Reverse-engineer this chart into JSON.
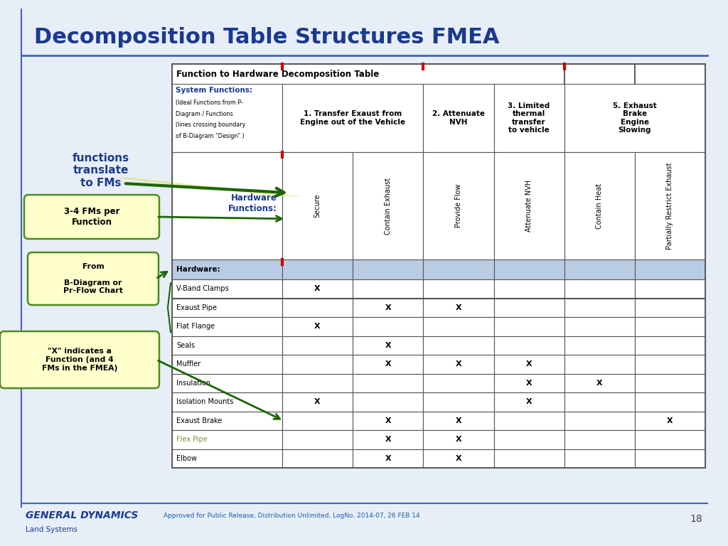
{
  "title": "Decomposition Table Structures FMEA",
  "title_color": "#1a3a8c",
  "bg_color": "#ffffff",
  "slide_bg": "#e8eef8",
  "table_title": "Function to Hardware Decomposition Table",
  "system_functions_label": "System Functions:",
  "system_functions_sub1": "(Ideal Functions from P-",
  "system_functions_sub2": "Diagram / Functions",
  "system_functions_sub3": "(lines crossing boundary",
  "system_functions_sub4": "of B-Diagram \"Design\".)",
  "col_headers": [
    "1. Transfer Exaust from\nEngine out of the Vehicle",
    "2. Attenuate\nNVH",
    "3. Limited\nthermal\ntransfer\nto vehicle",
    "5. Exhaust\nBrake\nEngine\nSlowing"
  ],
  "hw_functions_label": "Hardware\nFunctions:",
  "hw_col_headers": [
    "Secure",
    "Contain Exhaust",
    "Provide Flow",
    "Attenuate NVH",
    "Contain Heat",
    "Partially Restrict Exhaust"
  ],
  "hardware_label": "Hardware:",
  "hardware_rows": [
    [
      "V-Band Clamps",
      "X",
      "",
      "",
      "",
      "",
      ""
    ],
    [
      "Exaust Pipe",
      "",
      "X",
      "X",
      "",
      "",
      ""
    ],
    [
      "Flat Flange",
      "X",
      "",
      "",
      "",
      "",
      ""
    ],
    [
      "Seals",
      "",
      "X",
      "",
      "",
      "",
      ""
    ],
    [
      "Muffler",
      "",
      "X",
      "X",
      "X",
      "",
      ""
    ],
    [
      "Insulation",
      "",
      "",
      "",
      "X",
      "X",
      ""
    ],
    [
      "Isolation Mounts",
      "X",
      "",
      "",
      "X",
      "",
      ""
    ],
    [
      "Exaust Brake",
      "",
      "X",
      "X",
      "",
      "",
      "X"
    ],
    [
      "Flex Pipe",
      "",
      "X",
      "X",
      "",
      "",
      ""
    ],
    [
      "Elbow",
      "",
      "X",
      "X",
      "",
      "",
      ""
    ]
  ],
  "flex_pipe_color": "#888833",
  "hardware_header_color": "#b8cce4",
  "annotation_functions": "functions\ntranslate\nto FMs",
  "annotation_fms_per": "3-4 FMs per\nFunction",
  "annotation_from": "From\n\nB-Diagram or\nPr-Flow Chart",
  "annotation_x": "\"X\" indicates a\nFunction (and 4\nFMs in the FMEA)",
  "footer_company": "GENERAL DYNAMICS",
  "footer_sub": "Land Systems",
  "footer_text": "Approved for Public Release, Distribution Unlimited, LogNo. 2014-07, 26 FEB 14",
  "page_num": "18",
  "dark_blue": "#1a3a8c",
  "dark_green": "#1a6600",
  "light_green_box": "#ffffcc",
  "green_border": "#4a8c20",
  "red_tick": "#cc0000",
  "border_color": "#555555",
  "line_blue": "#4466aa"
}
